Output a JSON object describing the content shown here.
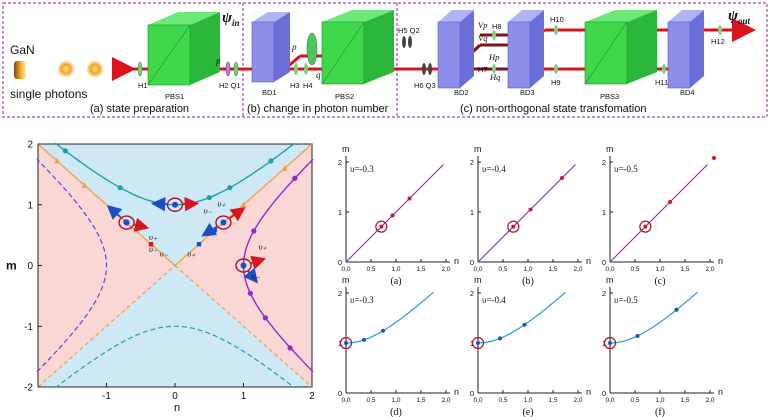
{
  "setup": {
    "source_label": "GaN",
    "photons_label": "single photons",
    "psi_in": "ψ",
    "psi_in_sub": "in",
    "psi_out": "ψ",
    "psi_out_sub": "out",
    "stages": [
      {
        "label": "(a) state preparation"
      },
      {
        "label": "(b) change in photon number"
      },
      {
        "label": "(c) non-orthogonal state transfomation"
      }
    ],
    "components": {
      "H1": "H1",
      "PBS1": "PBS1",
      "p1": "p",
      "H2Q1": "H2 Q1",
      "BD1": "BD1",
      "p2": "p",
      "q": "q",
      "H3": "H3",
      "H4": "H4",
      "PBS2": "PBS2",
      "H5Q2": "H5 Q2",
      "H6Q3": "H6 Q3",
      "BD2": "BD2",
      "Vp": "Vp",
      "Vq": "Vq",
      "H8": "H8",
      "Hp": "Hp",
      "H7": "H7",
      "Hq": "Hq",
      "BD3": "BD3",
      "H10": "H10",
      "H9": "H9",
      "PBS3": "PBS3",
      "H11": "H11",
      "BD4": "BD4",
      "H12": "H12"
    }
  },
  "colors": {
    "beam": "#d8141c",
    "pbs_green": "#3fd84a",
    "bd_blue": "#8c8ee8",
    "region_pink": "#f9d7d5",
    "region_blue": "#cfe8f5",
    "teal": "#1aa3a3",
    "purple": "#8f2ad0",
    "orange": "#f0a040",
    "red_point": "#d8141c",
    "blue_point": "#1a4fc8"
  },
  "chart_data": [
    {
      "id": "main",
      "type": "line",
      "xlabel": "n",
      "ylabel": "m",
      "xlim": [
        -2,
        2
      ],
      "ylim": [
        -2,
        2
      ],
      "xticks": [
        "-1",
        "0",
        "1",
        "2"
      ],
      "yticks": [
        "-2",
        "-1",
        "0",
        "1",
        "2"
      ],
      "series": [
        {
          "name": "hyperbola m^2-n^2=1 upper",
          "style": "solid",
          "color": "teal"
        },
        {
          "name": "hyperbola m^2-n^2=1 lower",
          "style": "dashed",
          "color": "teal"
        },
        {
          "name": "hyperbola n^2-m^2=1 right",
          "style": "solid",
          "color": "purple"
        },
        {
          "name": "hyperbola n^2-m^2=1 left",
          "style": "dashed",
          "color": "purple"
        },
        {
          "name": "asymptote m=n",
          "style": "solid-dashed",
          "color": "orange"
        },
        {
          "name": "asymptote m=-n",
          "style": "solid-dashed",
          "color": "orange"
        }
      ],
      "points": {
        "teal_branch": [
          [
            -1.6,
            1.887
          ],
          [
            -0.8,
            1.281
          ],
          [
            0.5,
            1.118
          ],
          [
            0.8,
            1.281
          ],
          [
            1.4,
            1.72
          ]
        ],
        "purple_branch": [
          [
            1.75,
            1.436
          ],
          [
            1.15,
            0.568
          ],
          [
            1.1,
            -0.458
          ],
          [
            1.32,
            -0.862
          ],
          [
            1.68,
            -1.356
          ]
        ],
        "line_red": [
          [
            -0.72,
            0.72
          ],
          [
            -0.35,
            0.35
          ]
        ],
        "line_blue": [
          [
            0.35,
            0.35
          ],
          [
            0.58,
            0.58
          ]
        ],
        "markers": [
          [
            -1.72,
            1.72
          ],
          [
            -1.32,
            1.32
          ],
          [
            1.0,
            1.0
          ],
          [
            1.6,
            1.6
          ]
        ]
      },
      "circled": [
        [
          0,
          1
        ],
        [
          -0.707,
          0.707
        ],
        [
          0.707,
          0.707
        ],
        [
          1,
          0
        ]
      ],
      "arrow_labels": [
        "υ₊",
        "υ₋",
        "υ₊",
        "υ₋",
        "υ₊",
        "υ₋",
        "υ₊",
        "υ₋"
      ]
    },
    {
      "id": "a",
      "type": "line",
      "panel_label": "(a)",
      "ups_label": "υ=-0.3",
      "curve": "line",
      "xlim": [
        0,
        2.0
      ],
      "ylim": [
        0,
        2.0
      ],
      "xticks": [
        "0,0",
        "0,5",
        "1,0",
        "1,5",
        "2,0"
      ],
      "yticks": [
        "0",
        "1",
        "2"
      ],
      "xlabel": "n",
      "ylabel": "m",
      "circle": [
        0.707,
        0.707
      ],
      "points": [
        [
          0.707,
          0.707
        ],
        [
          0.93,
          0.93
        ],
        [
          1.27,
          1.27
        ]
      ]
    },
    {
      "id": "b",
      "type": "line",
      "panel_label": "(b)",
      "ups_label": "υ=-0.4",
      "curve": "line",
      "xlim": [
        0,
        2.0
      ],
      "ylim": [
        0,
        2.0
      ],
      "xticks": [
        "0,0",
        "0,5",
        "1,0",
        "1,5",
        "2,0"
      ],
      "yticks": [
        "0",
        "1",
        "2"
      ],
      "xlabel": "n",
      "ylabel": "m",
      "circle": [
        0.707,
        0.707
      ],
      "points": [
        [
          0.707,
          0.707
        ],
        [
          1.05,
          1.05
        ],
        [
          1.68,
          1.68
        ]
      ]
    },
    {
      "id": "c",
      "type": "line",
      "panel_label": "(c)",
      "ups_label": "υ=-0.5",
      "curve": "line",
      "xlim": [
        0,
        2.0
      ],
      "ylim": [
        0,
        2.0
      ],
      "xticks": [
        "0,0",
        "0,5",
        "1,0",
        "1,5",
        "2,0"
      ],
      "yticks": [
        "0",
        "1",
        "2"
      ],
      "xlabel": "n",
      "ylabel": "m",
      "circle": [
        0.707,
        0.707
      ],
      "points": [
        [
          0.707,
          0.707
        ],
        [
          1.2,
          1.2
        ],
        [
          2.08,
          2.08
        ]
      ]
    },
    {
      "id": "d",
      "type": "line",
      "panel_label": "(d)",
      "ups_label": "υ=-0.3",
      "curve": "hyperbola",
      "xlim": [
        0,
        2.0
      ],
      "ylim": [
        0,
        2.0
      ],
      "xticks": [
        "0,0",
        "0,5",
        "1,0",
        "1,5",
        "2,0"
      ],
      "yticks": [
        "0",
        "1",
        "2"
      ],
      "xlabel": "n",
      "ylabel": "m",
      "circle": [
        0.0,
        1.0
      ],
      "points": [
        [
          0.0,
          1.0
        ],
        [
          0.36,
          1.063
        ],
        [
          0.74,
          1.244
        ]
      ]
    },
    {
      "id": "e",
      "type": "line",
      "panel_label": "(e)",
      "ups_label": "υ=-0.4",
      "curve": "hyperbola",
      "xlim": [
        0,
        2.0
      ],
      "ylim": [
        0,
        2.0
      ],
      "xticks": [
        "0,0",
        "0,5",
        "1,0",
        "1,5",
        "2,0"
      ],
      "yticks": [
        "0",
        "1",
        "2"
      ],
      "xlabel": "n",
      "ylabel": "m",
      "circle": [
        0.0,
        1.0
      ],
      "points": [
        [
          0.0,
          1.0
        ],
        [
          0.44,
          1.093
        ],
        [
          0.93,
          1.366
        ]
      ]
    },
    {
      "id": "f",
      "type": "line",
      "panel_label": "(f)",
      "ups_label": "υ=-0.5",
      "curve": "hyperbola",
      "xlim": [
        0,
        2.0
      ],
      "ylim": [
        0,
        2.0
      ],
      "xticks": [
        "0,0",
        "0,5",
        "1,0",
        "1,5",
        "2,0"
      ],
      "yticks": [
        "0",
        "1",
        "2"
      ],
      "xlabel": "n",
      "ylabel": "m",
      "circle": [
        0.0,
        1.0
      ],
      "points": [
        [
          0.0,
          1.0
        ],
        [
          0.55,
          1.141
        ],
        [
          1.33,
          1.664
        ]
      ]
    }
  ]
}
